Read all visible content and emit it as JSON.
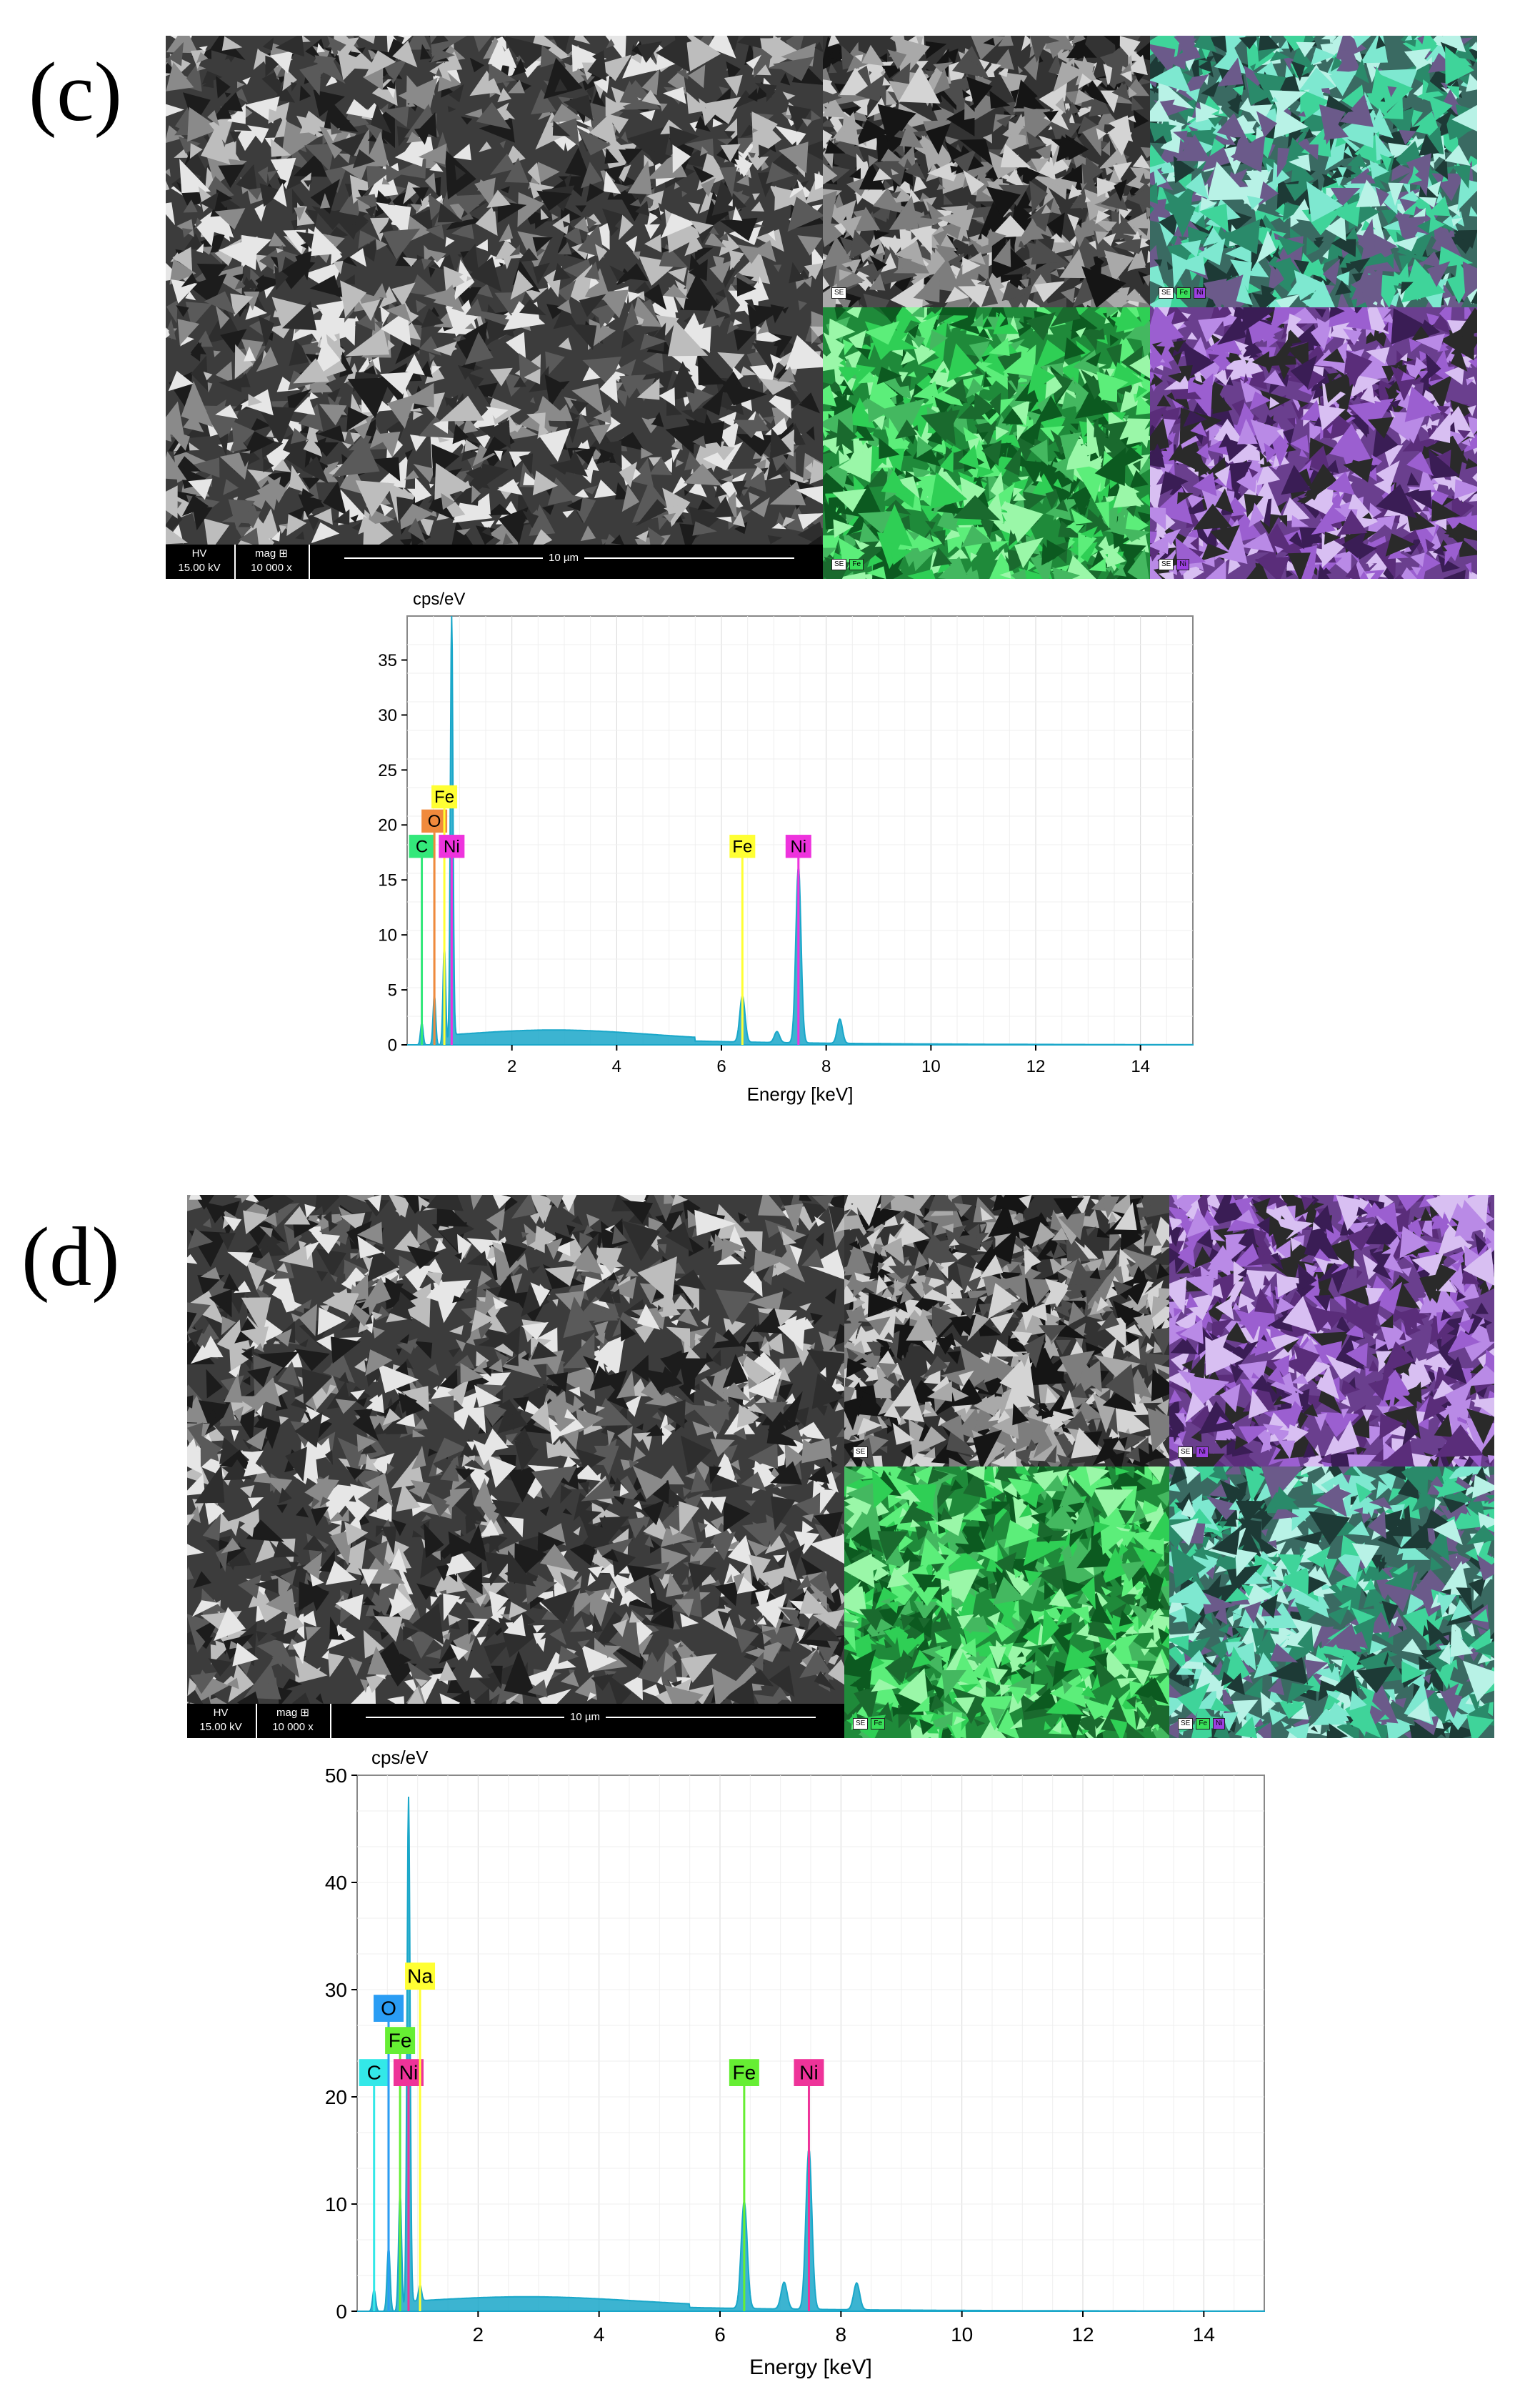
{
  "panels": [
    {
      "id": "c",
      "label": "(c)",
      "sem": {
        "hv_label": "HV",
        "hv_value": "15.00 kV",
        "mag_label": "mag ⊞",
        "mag_value": "10 000 x",
        "scale_label": "10 µm"
      },
      "maps": [
        {
          "tags": [
            "SE"
          ],
          "tag_colors": [
            "#ffffff"
          ],
          "tint": "gray"
        },
        {
          "tags": [
            "SE",
            "Fe",
            "Ni"
          ],
          "tag_colors": [
            "#ffffff",
            "#39e05a",
            "#9b3fe0"
          ],
          "tint": "teal"
        },
        {
          "tags": [
            "SE",
            "Fe"
          ],
          "tag_colors": [
            "#ffffff",
            "#39e05a"
          ],
          "tint": "green"
        },
        {
          "tags": [
            "SE",
            "Ni"
          ],
          "tag_colors": [
            "#ffffff",
            "#9b3fe0"
          ],
          "tint": "purple"
        }
      ],
      "chart_data": {
        "type": "line",
        "title": "",
        "ylabel": "cps/eV",
        "xlabel": "Energy [keV]",
        "xlim": [
          0,
          15
        ],
        "ylim": [
          0,
          39
        ],
        "xticks": [
          2,
          4,
          6,
          8,
          10,
          12,
          14
        ],
        "yticks": [
          0,
          5,
          10,
          15,
          20,
          25,
          30,
          35
        ],
        "grid": true,
        "peaks": [
          {
            "x": 0.28,
            "y": 2.0
          },
          {
            "x": 0.52,
            "y": 4.5
          },
          {
            "x": 0.71,
            "y": 9.0
          },
          {
            "x": 0.85,
            "y": 39.0
          },
          {
            "x": 6.4,
            "y": 4.2
          },
          {
            "x": 7.06,
            "y": 1.0
          },
          {
            "x": 7.47,
            "y": 16.0
          },
          {
            "x": 8.26,
            "y": 2.2
          }
        ],
        "markers": [
          {
            "element": "C",
            "x": 0.28,
            "color": "#33e87a",
            "line_top": 17
          },
          {
            "element": "O",
            "x": 0.52,
            "color": "#f08a3c",
            "line_top": 19.3
          },
          {
            "element": "Fe",
            "x": 0.71,
            "color": "#ffff33",
            "line_top": 21.5
          },
          {
            "element": "Ni",
            "x": 0.85,
            "color": "#ee33dd",
            "line_top": 17
          },
          {
            "element": "Fe",
            "x": 6.4,
            "color": "#ffff33",
            "line_top": 17
          },
          {
            "element": "Ni",
            "x": 7.47,
            "color": "#ee33dd",
            "line_top": 17
          }
        ],
        "colors": {
          "spectrum": "#1aa7c9",
          "frame": "#888888"
        }
      }
    },
    {
      "id": "d",
      "label": "(d)",
      "sem": {
        "hv_label": "HV",
        "hv_value": "15.00 kV",
        "mag_label": "mag ⊞",
        "mag_value": "10 000 x",
        "scale_label": "10 µm"
      },
      "maps": [
        {
          "tags": [
            "SE"
          ],
          "tag_colors": [
            "#ffffff"
          ],
          "tint": "gray"
        },
        {
          "tags": [
            "SE",
            "Ni"
          ],
          "tag_colors": [
            "#ffffff",
            "#9b3fe0"
          ],
          "tint": "purple"
        },
        {
          "tags": [
            "SE",
            "Fe"
          ],
          "tag_colors": [
            "#ffffff",
            "#39e05a"
          ],
          "tint": "green"
        },
        {
          "tags": [
            "SE",
            "Fe",
            "Ni"
          ],
          "tag_colors": [
            "#ffffff",
            "#39e05a",
            "#9b3fe0"
          ],
          "tint": "teal"
        }
      ],
      "chart_data": {
        "type": "line",
        "title": "",
        "ylabel": "cps/eV",
        "xlabel": "Energy [keV]",
        "xlim": [
          0,
          15
        ],
        "ylim": [
          0,
          50
        ],
        "xticks": [
          2,
          4,
          6,
          8,
          10,
          12,
          14
        ],
        "yticks": [
          0,
          10,
          20,
          30,
          40,
          50
        ],
        "grid": true,
        "peaks": [
          {
            "x": 0.28,
            "y": 2.0
          },
          {
            "x": 0.52,
            "y": 6.0
          },
          {
            "x": 0.71,
            "y": 11.0
          },
          {
            "x": 0.85,
            "y": 48.0
          },
          {
            "x": 1.04,
            "y": 1.5
          },
          {
            "x": 6.4,
            "y": 10.0
          },
          {
            "x": 7.06,
            "y": 2.5
          },
          {
            "x": 7.47,
            "y": 15.0
          },
          {
            "x": 8.26,
            "y": 2.5
          }
        ],
        "markers": [
          {
            "element": "C",
            "x": 0.28,
            "color": "#33e8e8",
            "line_top": 21
          },
          {
            "element": "O",
            "x": 0.52,
            "color": "#2a9df4",
            "line_top": 27
          },
          {
            "element": "Fe",
            "x": 0.71,
            "color": "#66ee33",
            "line_top": 24
          },
          {
            "element": "Ni",
            "x": 0.85,
            "color": "#ee3399",
            "line_top": 21
          },
          {
            "element": "Na",
            "x": 1.04,
            "color": "#ffff33",
            "line_top": 30
          },
          {
            "element": "Fe",
            "x": 6.4,
            "color": "#66ee33",
            "line_top": 21
          },
          {
            "element": "Ni",
            "x": 7.47,
            "color": "#ee3399",
            "line_top": 21
          }
        ],
        "colors": {
          "spectrum": "#1aa7c9",
          "frame": "#888888"
        }
      }
    }
  ]
}
